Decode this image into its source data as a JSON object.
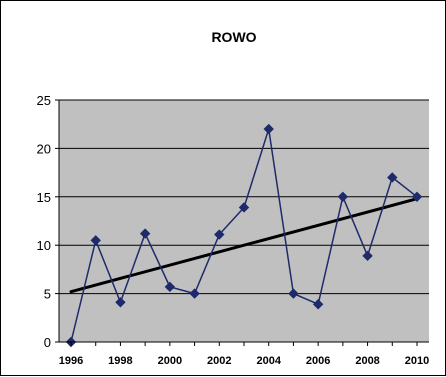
{
  "chart_data": {
    "type": "line",
    "title": "ROWO",
    "xlabel": "",
    "ylabel": "",
    "x": [
      1996,
      1997,
      1998,
      1999,
      2000,
      2001,
      2002,
      2003,
      2004,
      2005,
      2006,
      2007,
      2008,
      2009,
      2010
    ],
    "series": [
      {
        "values": [
          0,
          10.5,
          4.1,
          11.2,
          5.7,
          5.0,
          11.1,
          13.9,
          22.0,
          5.0,
          3.9,
          15.0,
          8.9,
          17.0,
          15.0
        ],
        "color": "#1f2a6b",
        "marker": "diamond"
      }
    ],
    "trendline": {
      "start": [
        1996,
        5.2
      ],
      "end": [
        2010,
        14.8
      ],
      "color": "#000000"
    },
    "xlim": [
      1996,
      2010
    ],
    "ylim": [
      0,
      25
    ],
    "xticks": [
      "1996",
      "1998",
      "2000",
      "2002",
      "2004",
      "2006",
      "2008",
      "2010"
    ],
    "yticks": [
      "0",
      "5",
      "10",
      "15",
      "20",
      "25"
    ],
    "grid": "horizontal",
    "legend": "none",
    "plot_background": "#c0c0c0"
  }
}
